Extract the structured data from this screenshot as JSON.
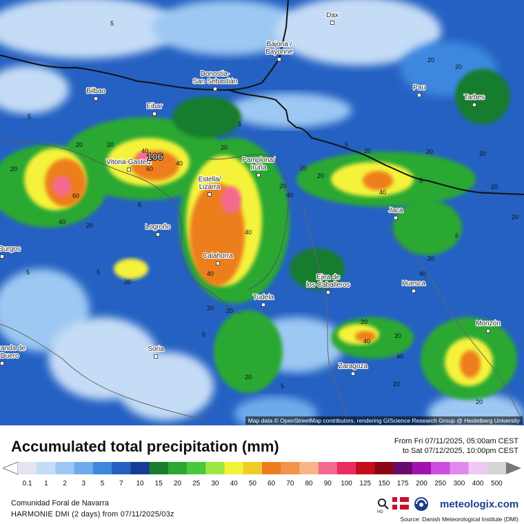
{
  "map": {
    "attribution": "Map data © OpenStreetMap contributors, rendering GIScience Research Group @ Heidelberg University",
    "max_value_label": "106",
    "cities": [
      {
        "name": "Dax"
      },
      {
        "name": "Bajona / Bayonne"
      },
      {
        "name": "Donostia- San Sebastián"
      },
      {
        "name": "Bilbao"
      },
      {
        "name": "Eibar"
      },
      {
        "name": "Pau"
      },
      {
        "name": "Tarbes"
      },
      {
        "name": "Vitoria-Gasteiz"
      },
      {
        "name": "Pamplona/ Iruña"
      },
      {
        "name": "Estella/ Lizarra"
      },
      {
        "name": "Jaca"
      },
      {
        "name": "Logroño"
      },
      {
        "name": "Calahorra"
      },
      {
        "name": "Ejea de los Caballeros"
      },
      {
        "name": "Huesca"
      },
      {
        "name": "Tudela"
      },
      {
        "name": "Monzón"
      },
      {
        "name": "Soria"
      },
      {
        "name": "Zaragoza"
      },
      {
        "name": "Aranda de Duero"
      },
      {
        "name": "Burgos"
      }
    ],
    "contour_labels": [
      "5",
      "5",
      "5",
      "5",
      "20",
      "20",
      "40",
      "40",
      "20",
      "20",
      "60",
      "40",
      "20",
      "40",
      "20",
      "20",
      "40",
      "60",
      "40",
      "20",
      "20",
      "20",
      "40",
      "20",
      "20",
      "40",
      "20",
      "20",
      "20",
      "40",
      "20",
      "5",
      "5",
      "5",
      "5",
      "20",
      "20",
      "20",
      "20",
      "40",
      "20",
      "20",
      "5",
      "5",
      "5",
      "20",
      "20"
    ]
  },
  "legend": {
    "title": "Accumulated total precipitation (mm)",
    "time_from": "From Fri 07/11/2025, 05:00am CEST",
    "time_to": "to Sat 07/12/2025, 10:00pm CEST",
    "region": "Comunidad Foral de Navarra",
    "model": "HARMONIE DMI (2 days)  from  07/11/2025/03z",
    "source": "Source: Danish Meteorological Institute (DMI)",
    "brand": "meteologix.com",
    "scale": [
      {
        "label": "0.1",
        "color": "#e3e3f2"
      },
      {
        "label": "1",
        "color": "#c5dcf6"
      },
      {
        "label": "2",
        "color": "#9dc8f3"
      },
      {
        "label": "3",
        "color": "#6eabeb"
      },
      {
        "label": "5",
        "color": "#3d88de"
      },
      {
        "label": "7",
        "color": "#2561c2"
      },
      {
        "label": "10",
        "color": "#153c96"
      },
      {
        "label": "15",
        "color": "#187c2e"
      },
      {
        "label": "20",
        "color": "#2ba833"
      },
      {
        "label": "25",
        "color": "#48c93b"
      },
      {
        "label": "30",
        "color": "#9ee642"
      },
      {
        "label": "40",
        "color": "#f5f23a"
      },
      {
        "label": "50",
        "color": "#f0cc2b"
      },
      {
        "label": "60",
        "color": "#ed7e1f"
      },
      {
        "label": "70",
        "color": "#f4934a"
      },
      {
        "label": "80",
        "color": "#f8b58a"
      },
      {
        "label": "90",
        "color": "#f46a8e"
      },
      {
        "label": "100",
        "color": "#ea2c5e"
      },
      {
        "label": "125",
        "color": "#c40d18"
      },
      {
        "label": "150",
        "color": "#8d0616"
      },
      {
        "label": "175",
        "color": "#6a0a6e"
      },
      {
        "label": "200",
        "color": "#a012b0"
      },
      {
        "label": "250",
        "color": "#cc4fdf"
      },
      {
        "label": "300",
        "color": "#e089ec"
      },
      {
        "label": "400",
        "color": "#f1c8f5"
      },
      {
        "label": "500",
        "color": "#d4d4d4"
      }
    ]
  }
}
